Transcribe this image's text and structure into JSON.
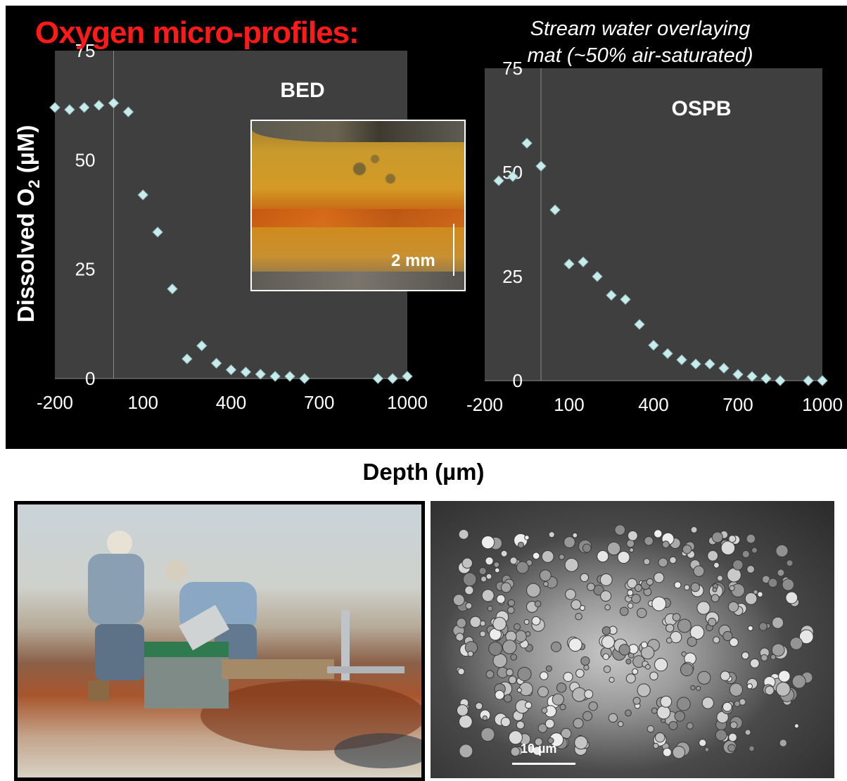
{
  "title": "Oxygen micro-profiles:",
  "subtitle_lines": [
    "Stream water overlaying",
    "mat (~50% air-saturated)"
  ],
  "ylabel_main": "Dissolved O",
  "ylabel_sub": "2",
  "ylabel_tail": " (µM)",
  "xlabel": "Depth (µm)",
  "inset_scale_label": "2 mm",
  "sem_scale_label": "10 µm",
  "colors": {
    "background": "#000000",
    "plot_area": "#3f3f3f",
    "marker": "#c8ecec",
    "title": "#ff1a1a"
  },
  "chart_data": [
    {
      "type": "scatter",
      "title": "BED",
      "xlim": [
        -200,
        1000
      ],
      "ylim": [
        0,
        75
      ],
      "xticks": [
        -200,
        100,
        400,
        700,
        1000
      ],
      "yticks": [
        0,
        25,
        50,
        75
      ],
      "marker": "diamond",
      "points": [
        [
          -200,
          62
        ],
        [
          -150,
          61.5
        ],
        [
          -100,
          62
        ],
        [
          -50,
          62.5
        ],
        [
          0,
          63
        ],
        [
          50,
          61
        ],
        [
          100,
          42
        ],
        [
          150,
          33.5
        ],
        [
          200,
          20.5
        ],
        [
          250,
          4.5
        ],
        [
          300,
          7.5
        ],
        [
          350,
          3.5
        ],
        [
          400,
          2
        ],
        [
          450,
          1.5
        ],
        [
          500,
          1
        ],
        [
          550,
          0.5
        ],
        [
          600,
          0.5
        ],
        [
          650,
          0
        ],
        [
          900,
          0
        ],
        [
          950,
          0
        ],
        [
          1000,
          0.5
        ]
      ]
    },
    {
      "type": "scatter",
      "title": "OSPB",
      "xlim": [
        -200,
        1000
      ],
      "ylim": [
        0,
        75
      ],
      "xticks": [
        -200,
        100,
        400,
        700,
        1000
      ],
      "yticks": [
        0,
        25,
        50,
        75
      ],
      "marker": "diamond",
      "points": [
        [
          -150,
          48
        ],
        [
          -100,
          49
        ],
        [
          -50,
          57
        ],
        [
          0,
          51.5
        ],
        [
          50,
          41
        ],
        [
          100,
          28
        ],
        [
          150,
          28.5
        ],
        [
          200,
          25
        ],
        [
          250,
          20.5
        ],
        [
          300,
          19.5
        ],
        [
          350,
          13.5
        ],
        [
          400,
          8.5
        ],
        [
          450,
          6.5
        ],
        [
          500,
          5
        ],
        [
          550,
          4
        ],
        [
          600,
          4
        ],
        [
          650,
          3
        ],
        [
          700,
          1.5
        ],
        [
          750,
          1
        ],
        [
          800,
          0.5
        ],
        [
          850,
          0
        ],
        [
          950,
          0
        ],
        [
          1000,
          0
        ]
      ]
    }
  ]
}
